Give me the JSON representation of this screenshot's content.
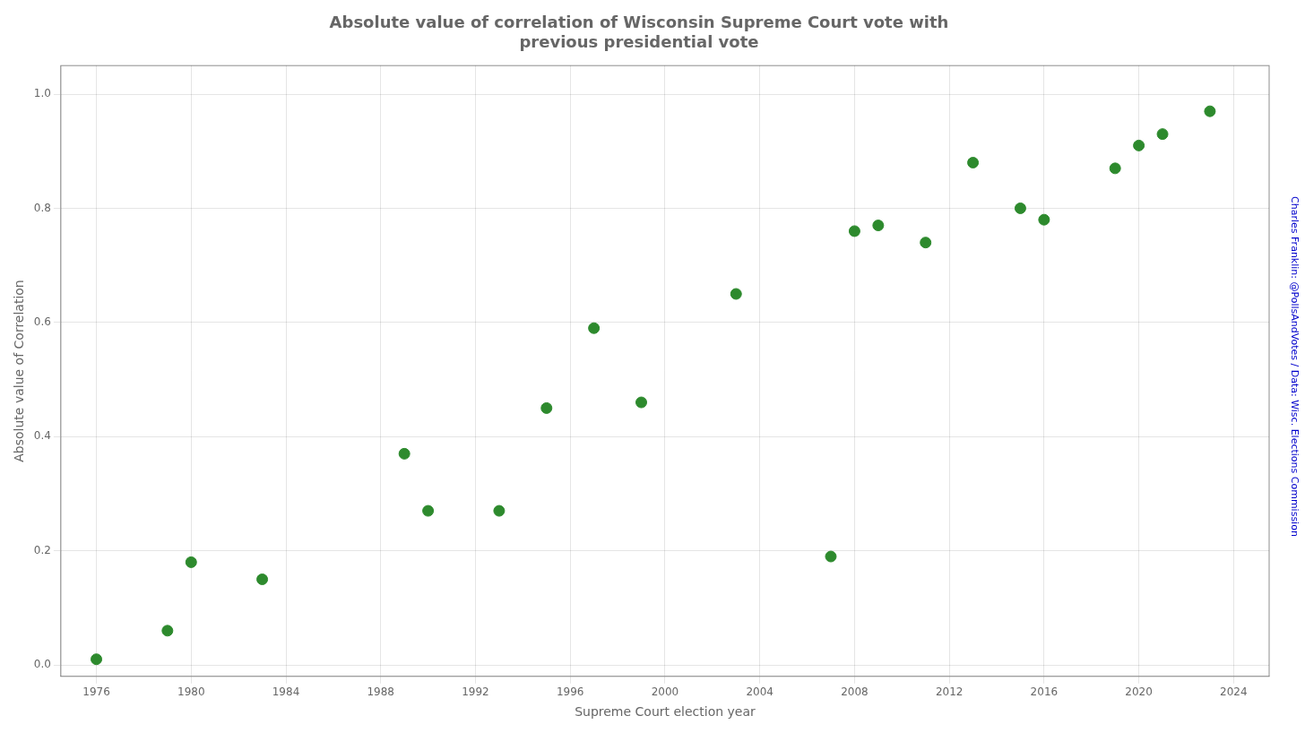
{
  "chart_data": {
    "type": "scatter",
    "title": "Absolute value of correlation of Wisconsin Supreme Court vote with\nprevious presidential vote",
    "x_label": "Supreme Court election year",
    "y_label": "Absolute value of Correlation",
    "annotations": [
      "Charles Franklin: @PollsAndVotes / Data: Wisc. Elections Commission"
    ],
    "x": [
      1976,
      1979,
      1980,
      1983,
      1989,
      1990,
      1993,
      1995,
      1997,
      1999,
      2003,
      2007,
      2008,
      2009,
      2011,
      2013,
      2015,
      2016,
      2019,
      2020,
      2021,
      2023
    ],
    "values": [
      0.01,
      0.06,
      0.18,
      0.15,
      0.37,
      0.27,
      0.27,
      0.45,
      0.59,
      0.46,
      0.65,
      0.19,
      0.76,
      0.77,
      0.74,
      0.88,
      0.8,
      0.78,
      0.87,
      0.91,
      0.93,
      0.97
    ],
    "color": "#2d8a2d",
    "xlim": [
      1974.5,
      2025.5
    ],
    "ylim": [
      -0.02,
      1.05
    ],
    "xticks": [
      1976,
      1980,
      1984,
      1988,
      1992,
      1996,
      2000,
      2004,
      2008,
      2012,
      2016,
      2020,
      2024
    ],
    "yticks": [
      {
        "value": 0,
        "label": "0.0"
      },
      0.2,
      0.4,
      0.6,
      0.8,
      {
        "value": 1,
        "label": "1.0"
      }
    ],
    "grid": true
  }
}
